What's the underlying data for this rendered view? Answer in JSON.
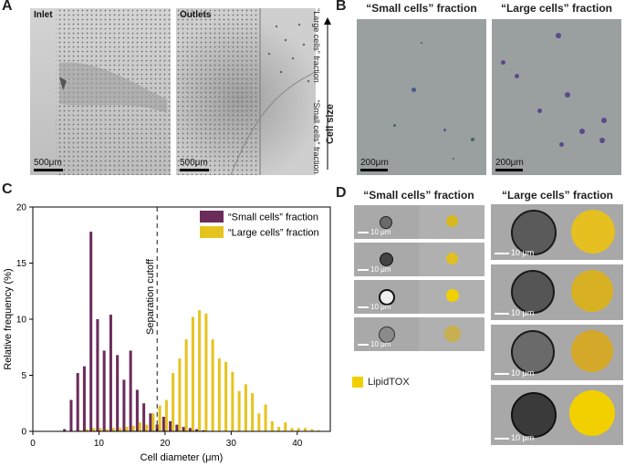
{
  "panels": {
    "a": {
      "label": "A",
      "inlet_title": "Inlet",
      "outlets_title": "Outlets",
      "scale_inlet": "500μm",
      "scale_outlets": "500μm",
      "large_fraction_label": "“Large cells” fraction",
      "small_fraction_label": "“Small cells” fraction",
      "cell_size_label": "Cell size"
    },
    "b": {
      "label": "B",
      "small_title": "“Small cells” fraction",
      "large_title": "“Large cells” fraction",
      "scale_small": "200μm",
      "scale_large": "200μm"
    },
    "c": {
      "label": "C"
    },
    "d": {
      "label": "D",
      "small_title": "“Small cells” fraction",
      "large_title": "“Large cells” fraction",
      "scale_text": "10 μm",
      "legend_label": "LipidTOX",
      "legend_color": "#f0d000"
    }
  },
  "chart_data": {
    "type": "bar",
    "xlabel": "Cell diameter (μm)",
    "ylabel": "Relative frequency (%)",
    "xlim": [
      0,
      45
    ],
    "ylim": [
      0,
      20
    ],
    "xticks": [
      0,
      10,
      20,
      30,
      40
    ],
    "yticks": [
      0,
      5,
      10,
      15,
      20
    ],
    "cutoff": {
      "x": 18.8,
      "label": "Separation cutoff"
    },
    "series": [
      {
        "name": "“Small cells” fraction",
        "color": "#6b2c5c",
        "x": [
          5,
          6,
          7,
          8,
          9,
          10,
          11,
          12,
          13,
          14,
          15,
          16,
          17,
          18,
          19,
          20,
          21,
          22,
          23,
          24,
          25,
          26
        ],
        "values": [
          0.2,
          2.8,
          5.2,
          5.8,
          17.8,
          10.0,
          7.2,
          10.4,
          6.8,
          4.6,
          7.2,
          3.7,
          2.5,
          1.6,
          0.6,
          1.3,
          0.9,
          0.6,
          0.4,
          0.3,
          0.2,
          0.1
        ]
      },
      {
        "name": "“Large cells” fraction",
        "color": "#e6c420",
        "x": [
          7,
          8,
          9,
          10,
          11,
          12,
          13,
          14,
          15,
          16,
          17,
          18,
          19,
          20,
          21,
          22,
          23,
          24,
          25,
          26,
          27,
          28,
          29,
          30,
          31,
          32,
          33,
          34,
          35,
          36,
          37,
          38,
          39,
          40,
          41,
          42,
          43
        ],
        "values": [
          0.1,
          0.2,
          0.3,
          0.3,
          0.2,
          0.3,
          0.3,
          0.4,
          0.5,
          0.8,
          0.6,
          1.6,
          2.3,
          2.8,
          5.2,
          6.5,
          8.2,
          10.2,
          10.8,
          10.5,
          8.2,
          6.5,
          6.2,
          5.3,
          3.6,
          4.2,
          3.4,
          1.6,
          2.4,
          0.9,
          0.4,
          0.8,
          0.3,
          0.3,
          0.3,
          0.2,
          0.1
        ]
      }
    ]
  }
}
